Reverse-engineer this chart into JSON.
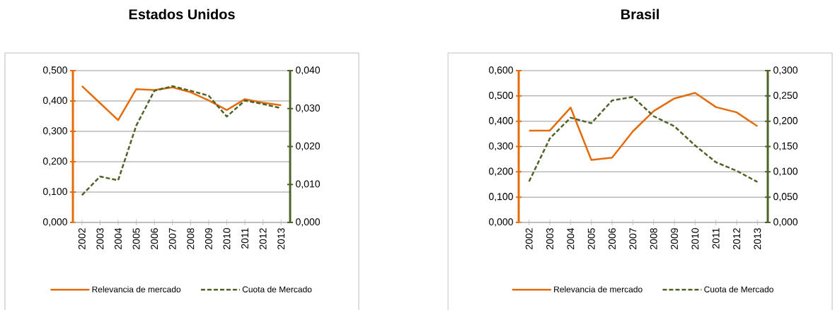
{
  "chart_data": [
    {
      "type": "line",
      "title": "Estados Unidos",
      "categories": [
        "2002",
        "2003",
        "2004",
        "2005",
        "2006",
        "2007",
        "2008",
        "2009",
        "2010",
        "2011",
        "2012",
        "2013"
      ],
      "series": [
        {
          "name": "Relevancia de mercado",
          "color": "#e46c0a",
          "line_style": "solid",
          "values": [
            0.449,
            0.393,
            0.337,
            0.439,
            0.436,
            0.445,
            0.429,
            0.402,
            0.37,
            0.406,
            0.394,
            0.386
          ]
        },
        {
          "name": "Cuota de Mercado",
          "color": "#4f6228",
          "line_style": "dashed",
          "axis": "y2",
          "values": [
            0.0072,
            0.0121,
            0.0111,
            0.0255,
            0.0347,
            0.0359,
            0.0347,
            0.0334,
            0.0279,
            0.0321,
            0.0312,
            0.0301
          ]
        }
      ],
      "ylim": [
        0,
        0.5
      ],
      "yticks": [
        {
          "value": 0,
          "label": "0,000"
        },
        {
          "value": 0.1,
          "label": "0,100"
        },
        {
          "value": 0.2,
          "label": "0,200"
        },
        {
          "value": 0.3,
          "label": "0,300"
        },
        {
          "value": 0.4,
          "label": "0,400"
        },
        {
          "value": 0.5,
          "label": "0,500"
        }
      ],
      "y2lim": [
        0,
        0.04
      ],
      "y2ticks": [
        {
          "value": 0,
          "label": "0,000"
        },
        {
          "value": 0.01,
          "label": "0,010"
        },
        {
          "value": 0.02,
          "label": "0,020"
        },
        {
          "value": 0.03,
          "label": "0,030"
        },
        {
          "value": 0.04,
          "label": "0,040"
        }
      ],
      "grid": "y",
      "legend": "bottom"
    },
    {
      "type": "line",
      "title": "Brasil",
      "categories": [
        "2002",
        "2003",
        "2004",
        "2005",
        "2006",
        "2007",
        "2008",
        "2009",
        "2010",
        "2011",
        "2012",
        "2013"
      ],
      "series": [
        {
          "name": "Relevancia de mercado",
          "color": "#e46c0a",
          "line_style": "solid",
          "values": [
            0.363,
            0.363,
            0.454,
            0.247,
            0.256,
            0.36,
            0.44,
            0.49,
            0.512,
            0.456,
            0.435,
            0.38
          ]
        },
        {
          "name": "Cuota de Mercado",
          "color": "#4f6228",
          "line_style": "dashed",
          "axis": "y2",
          "values": [
            0.081,
            0.166,
            0.207,
            0.196,
            0.241,
            0.248,
            0.21,
            0.19,
            0.152,
            0.119,
            0.102,
            0.08
          ]
        }
      ],
      "ylim": [
        0,
        0.6
      ],
      "yticks": [
        {
          "value": 0,
          "label": "0,000"
        },
        {
          "value": 0.1,
          "label": "0,100"
        },
        {
          "value": 0.2,
          "label": "0,200"
        },
        {
          "value": 0.3,
          "label": "0,300"
        },
        {
          "value": 0.4,
          "label": "0,400"
        },
        {
          "value": 0.5,
          "label": "0,500"
        },
        {
          "value": 0.6,
          "label": "0,600"
        }
      ],
      "y2lim": [
        0,
        0.3
      ],
      "y2ticks": [
        {
          "value": 0,
          "label": "0,000"
        },
        {
          "value": 0.05,
          "label": "0,050"
        },
        {
          "value": 0.1,
          "label": "0,100"
        },
        {
          "value": 0.15,
          "label": "0,150"
        },
        {
          "value": 0.2,
          "label": "0,200"
        },
        {
          "value": 0.25,
          "label": "0,250"
        },
        {
          "value": 0.3,
          "label": "0,300"
        }
      ],
      "grid": "y",
      "legend": "bottom"
    }
  ]
}
